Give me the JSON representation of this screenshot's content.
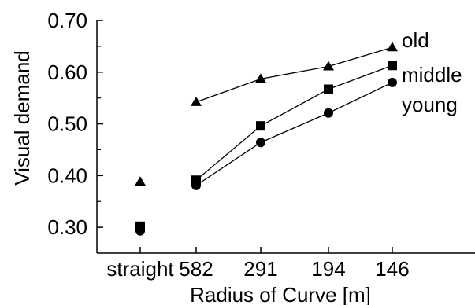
{
  "chart_data": {
    "type": "line",
    "categories": [
      "straight",
      "582",
      "291",
      "194",
      "146"
    ],
    "xlabel": "Radius of Curve [m]",
    "ylabel": "Visual demand",
    "ylim": [
      0.25,
      0.7
    ],
    "yticks": [
      "0.30",
      "0.40",
      "0.50",
      "0.60",
      "0.70"
    ],
    "ytick_values": [
      0.3,
      0.4,
      0.5,
      0.6,
      0.7
    ],
    "grid": false,
    "legend": "right",
    "series": [
      {
        "name": "old",
        "marker": "triangle",
        "values": [
          0.388,
          0.542,
          0.587,
          0.611,
          0.648
        ],
        "connected_from_index": 1
      },
      {
        "name": "middle",
        "marker": "square",
        "values": [
          0.302,
          0.391,
          0.496,
          0.567,
          0.613
        ],
        "connected_from_index": 1
      },
      {
        "name": "young",
        "marker": "circle",
        "values": [
          0.293,
          0.381,
          0.464,
          0.521,
          0.58
        ],
        "connected_from_index": 1
      }
    ]
  }
}
